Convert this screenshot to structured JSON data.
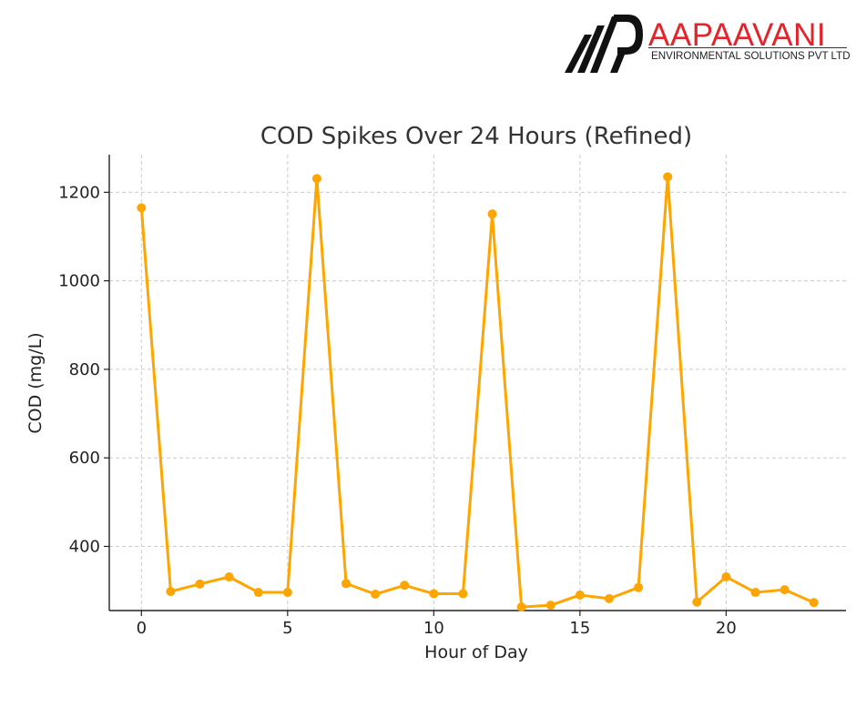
{
  "brand": {
    "name": "AAPAAVANI",
    "tagline": "ENVIRONMENTAL SOLUTIONS PVT LTD",
    "logo_icon": "ap-monogram-icon",
    "color_primary": "#e3242b",
    "color_dark": "#111111"
  },
  "chart_data": {
    "type": "line",
    "title": "COD Spikes Over 24 Hours (Refined)",
    "xlabel": "Hour of Day",
    "ylabel": "COD (mg/L)",
    "xlim": [
      -1.1,
      24.1
    ],
    "ylim": [
      255,
      1285
    ],
    "xticks": [
      0,
      5,
      10,
      15,
      20
    ],
    "yticks": [
      400,
      600,
      800,
      1000,
      1200
    ],
    "grid": true,
    "line_color": "#ffa500",
    "series": [
      {
        "x": [
          0,
          1,
          2,
          3,
          4,
          5,
          6,
          7,
          8,
          9,
          10,
          11,
          12,
          13,
          14,
          15,
          16,
          17,
          18,
          19,
          20,
          21,
          22,
          23
        ],
        "values": [
          1165,
          298,
          315,
          331,
          296,
          296,
          1231,
          316,
          292,
          312,
          293,
          293,
          1151,
          263,
          267,
          290,
          282,
          307,
          1235,
          274,
          331,
          296,
          302,
          273
        ]
      }
    ]
  }
}
